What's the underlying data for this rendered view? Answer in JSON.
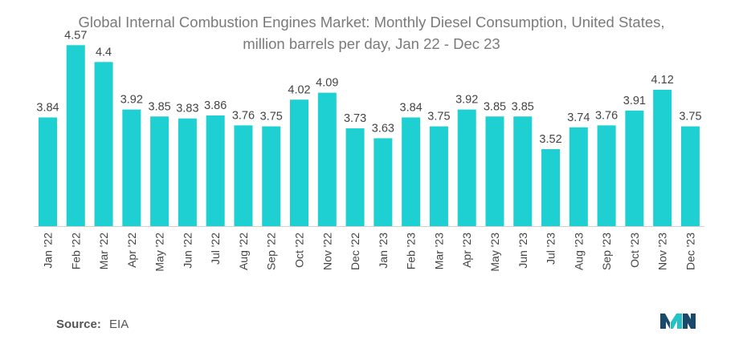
{
  "title_line1": "Global Internal Combustion Engines Market: Monthly Diesel Consumption, United States,",
  "title_line2": "million barrels per day, Jan 22 - Dec 23",
  "source": {
    "label": "Source:",
    "value": "EIA"
  },
  "colors": {
    "bar": "#1fd0d3",
    "value_text": "#444444",
    "tick_text": "#444444",
    "axis": "#d0d0d0",
    "logo_dark": "#1a4a6b",
    "logo_teal": "#26c0c7"
  },
  "chart_data": {
    "type": "bar",
    "title": "Global Internal Combustion Engines Market: Monthly Diesel Consumption, United States, million barrels per day, Jan 22 - Dec 23",
    "categories": [
      "Jan '22",
      "Feb '22",
      "Mar '22",
      "Apr '22",
      "May '22",
      "Jun '22",
      "Jul '22",
      "Aug '22",
      "Sep '22",
      "Oct '22",
      "Nov '22",
      "Dec '22",
      "Jan '23",
      "Feb '23",
      "Mar '23",
      "Apr '23",
      "May '23",
      "Jun '23",
      "Jul '23",
      "Aug '23",
      "Sep '23",
      "Oct '23",
      "Nov '23",
      "Dec '23"
    ],
    "values": [
      3.84,
      4.57,
      4.4,
      3.92,
      3.85,
      3.83,
      3.86,
      3.76,
      3.75,
      4.02,
      4.09,
      3.73,
      3.63,
      3.84,
      3.75,
      3.92,
      3.85,
      3.85,
      3.52,
      3.74,
      3.76,
      3.91,
      4.12,
      3.75
    ],
    "value_labels": [
      "3.84",
      "4.57",
      "4.4",
      "3.92",
      "3.85",
      "3.83",
      "3.86",
      "3.76",
      "3.75",
      "4.02",
      "4.09",
      "3.73",
      "3.63",
      "3.84",
      "3.75",
      "3.92",
      "3.85",
      "3.85",
      "3.52",
      "3.74",
      "3.76",
      "3.91",
      "4.12",
      "3.75"
    ],
    "xlabel": "",
    "ylabel": "",
    "y_axis_visible": false,
    "grid": false,
    "legend": "none"
  }
}
